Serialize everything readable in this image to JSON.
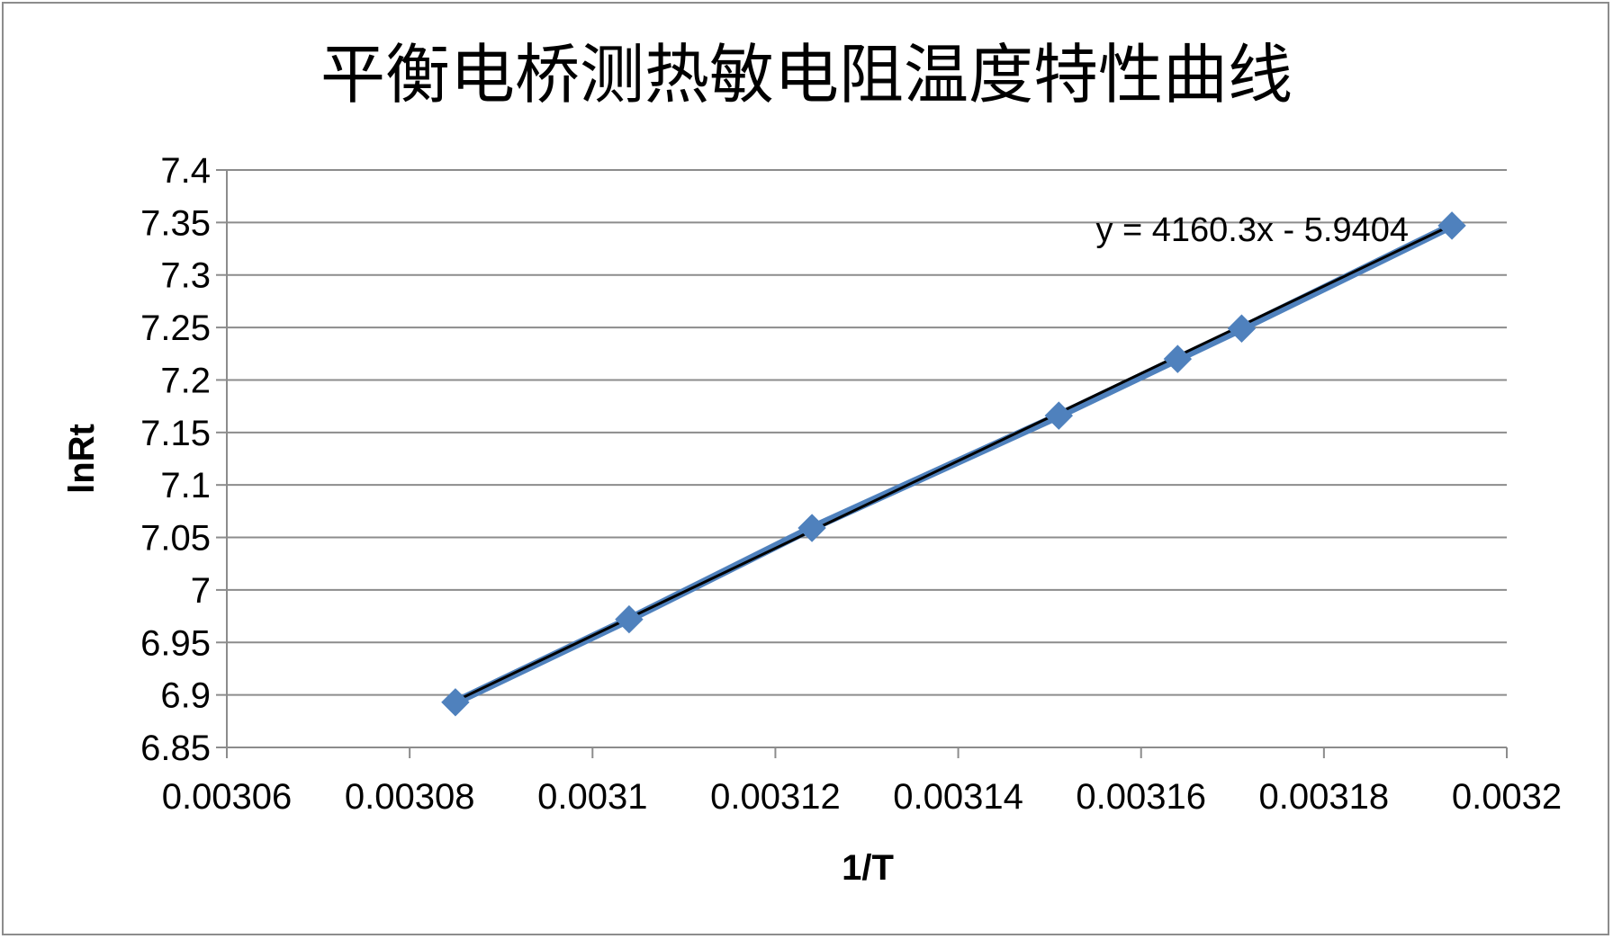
{
  "chart_data": {
    "type": "scatter",
    "title": "平衡电桥测热敏电阻温度特性曲线",
    "xlabel": "1/T",
    "ylabel": "lnRt",
    "xlim": [
      0.00306,
      0.0032
    ],
    "ylim": [
      6.85,
      7.4
    ],
    "x_ticks": [
      0.00306,
      0.00308,
      0.0031,
      0.00312,
      0.00314,
      0.00316,
      0.00318,
      0.0032
    ],
    "x_tick_labels": [
      "0.00306",
      "0.00308",
      "0.0031",
      "0.00312",
      "0.00314",
      "0.00316",
      "0.00318",
      "0.0032"
    ],
    "y_ticks": [
      6.85,
      6.9,
      6.95,
      7.0,
      7.05,
      7.1,
      7.15,
      7.2,
      7.25,
      7.3,
      7.35,
      7.4
    ],
    "y_tick_labels": [
      "6.85",
      "6.9",
      "6.95",
      "7",
      "7.05",
      "7.1",
      "7.15",
      "7.2",
      "7.25",
      "7.3",
      "7.35",
      "7.4"
    ],
    "grid": true,
    "series": [
      {
        "x": [
          0.003085,
          0.003104,
          0.003124,
          0.003151,
          0.003164,
          0.003171,
          0.003194
        ],
        "y": [
          6.893,
          6.972,
          7.059,
          7.166,
          7.22,
          7.249,
          7.347
        ],
        "color": "#4f81bd",
        "marker": "diamond",
        "connected": true
      }
    ],
    "trendline": {
      "type": "linear",
      "slope": 4160.3,
      "intercept": -5.9404,
      "equation_label": "y = 4160.3x - 5.9404",
      "color": "#000000"
    }
  }
}
